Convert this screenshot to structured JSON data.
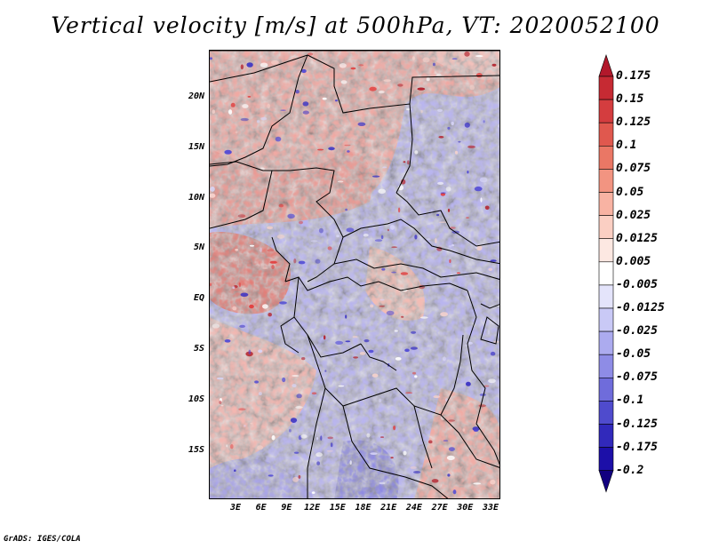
{
  "title": "Vertical velocity [m/s] at 500hPa, VT: 2020052100",
  "credit": "GrADS: IGES/COLA",
  "latitude_labels": [
    "20N",
    "15N",
    "10N",
    "5N",
    "EQ",
    "5S",
    "10S",
    "15S"
  ],
  "longitude_labels": [
    "3E",
    "6E",
    "9E",
    "12E",
    "15E",
    "18E",
    "21E",
    "24E",
    "27E",
    "30E",
    "33E"
  ],
  "colorbar": {
    "levels": [
      "0.175",
      "0.15",
      "0.125",
      "0.1",
      "0.075",
      "0.05",
      "0.025",
      "0.0125",
      "0.005",
      "-0.005",
      "-0.0125",
      "-0.025",
      "-0.05",
      "-0.075",
      "-0.1",
      "-0.125",
      "-0.175",
      "-0.2"
    ],
    "colors": [
      "#b2182b",
      "#c62a33",
      "#d43d3f",
      "#e0584e",
      "#ea7765",
      "#f29481",
      "#f8b3a3",
      "#fbcfc3",
      "#fde8e2",
      "#ffffff",
      "#e4e4fb",
      "#c9c9f6",
      "#acabef",
      "#8e8ce6",
      "#6f6cdb",
      "#4f4bcd",
      "#3129bb",
      "#1c0fa8",
      "#120080"
    ]
  },
  "chart_data": {
    "type": "heatmap",
    "title": "Vertical velocity [m/s] at 500hPa, VT: 2020052100",
    "variable": "Vertical velocity",
    "units": "m/s",
    "level": "500hPa",
    "valid_time": "2020052100",
    "longitude_range": [
      0,
      35
    ],
    "latitude_range": [
      -20,
      25
    ],
    "contour_levels": [
      -0.2,
      -0.175,
      -0.125,
      -0.1,
      -0.075,
      -0.05,
      -0.025,
      -0.0125,
      -0.005,
      0.005,
      0.0125,
      0.025,
      0.05,
      0.075,
      0.1,
      0.125,
      0.15,
      0.175
    ]
  }
}
